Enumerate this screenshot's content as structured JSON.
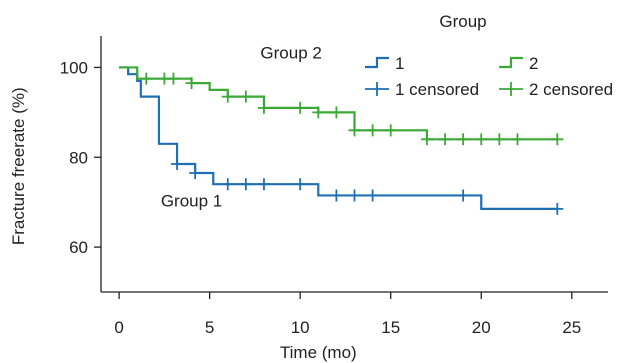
{
  "chart_data": {
    "type": "line",
    "subtype": "kaplan-meier step",
    "xlabel": "Time (mo)",
    "ylabel": "Fracture freerate (%)",
    "xlim": [
      -1,
      27
    ],
    "ylim": [
      50,
      107
    ],
    "xticks": [
      0,
      5,
      10,
      15,
      20,
      25
    ],
    "yticks": [
      60,
      80,
      100
    ],
    "grid": false,
    "legend": {
      "title": "Group",
      "placement": "top-right",
      "entries": [
        {
          "label": "1",
          "kind": "step",
          "series": 0
        },
        {
          "label": "2",
          "kind": "step",
          "series": 1
        },
        {
          "label": "1 censored",
          "kind": "censor",
          "series": 0
        },
        {
          "label": "2 censored",
          "kind": "censor",
          "series": 1
        }
      ]
    },
    "series": [
      {
        "name": "1",
        "color": "#1f6fb5",
        "steps": [
          [
            0,
            100
          ],
          [
            0.5,
            98.5
          ],
          [
            1,
            97
          ],
          [
            1.2,
            93.5
          ],
          [
            2.2,
            83
          ],
          [
            3.2,
            78.5
          ],
          [
            4.2,
            76.5
          ],
          [
            5.2,
            74
          ],
          [
            11,
            71.5
          ],
          [
            20,
            68.5
          ],
          [
            24.2,
            68.5
          ]
        ],
        "censored": [
          [
            3.2,
            78.5
          ],
          [
            4.2,
            76.5
          ],
          [
            6,
            74
          ],
          [
            7,
            74
          ],
          [
            8,
            74
          ],
          [
            10,
            74
          ],
          [
            12,
            71.5
          ],
          [
            13,
            71.5
          ],
          [
            14,
            71.5
          ],
          [
            19,
            71.5
          ],
          [
            24.2,
            68.5
          ]
        ]
      },
      {
        "name": "2",
        "color": "#3aa935",
        "steps": [
          [
            0,
            100
          ],
          [
            1,
            97.5
          ],
          [
            4,
            96.5
          ],
          [
            5,
            95
          ],
          [
            6,
            93.5
          ],
          [
            8,
            91
          ],
          [
            11,
            90
          ],
          [
            13,
            86
          ],
          [
            17,
            84
          ],
          [
            24.2,
            84
          ]
        ],
        "censored": [
          [
            1.5,
            97.5
          ],
          [
            2.5,
            97.5
          ],
          [
            3,
            97.5
          ],
          [
            4,
            96.5
          ],
          [
            6,
            93.5
          ],
          [
            7,
            93.5
          ],
          [
            8,
            91
          ],
          [
            10,
            91
          ],
          [
            11,
            90
          ],
          [
            12,
            90
          ],
          [
            13,
            86
          ],
          [
            14,
            86
          ],
          [
            15,
            86
          ],
          [
            17,
            84
          ],
          [
            18,
            84
          ],
          [
            19,
            84
          ],
          [
            20,
            84
          ],
          [
            21,
            84
          ],
          [
            22,
            84
          ],
          [
            24.2,
            84
          ]
        ]
      }
    ],
    "annotations": [
      {
        "text": "Group 2",
        "x": 9.5,
        "y": 102
      },
      {
        "text": "Group 1",
        "x": 4,
        "y": 69
      }
    ]
  }
}
